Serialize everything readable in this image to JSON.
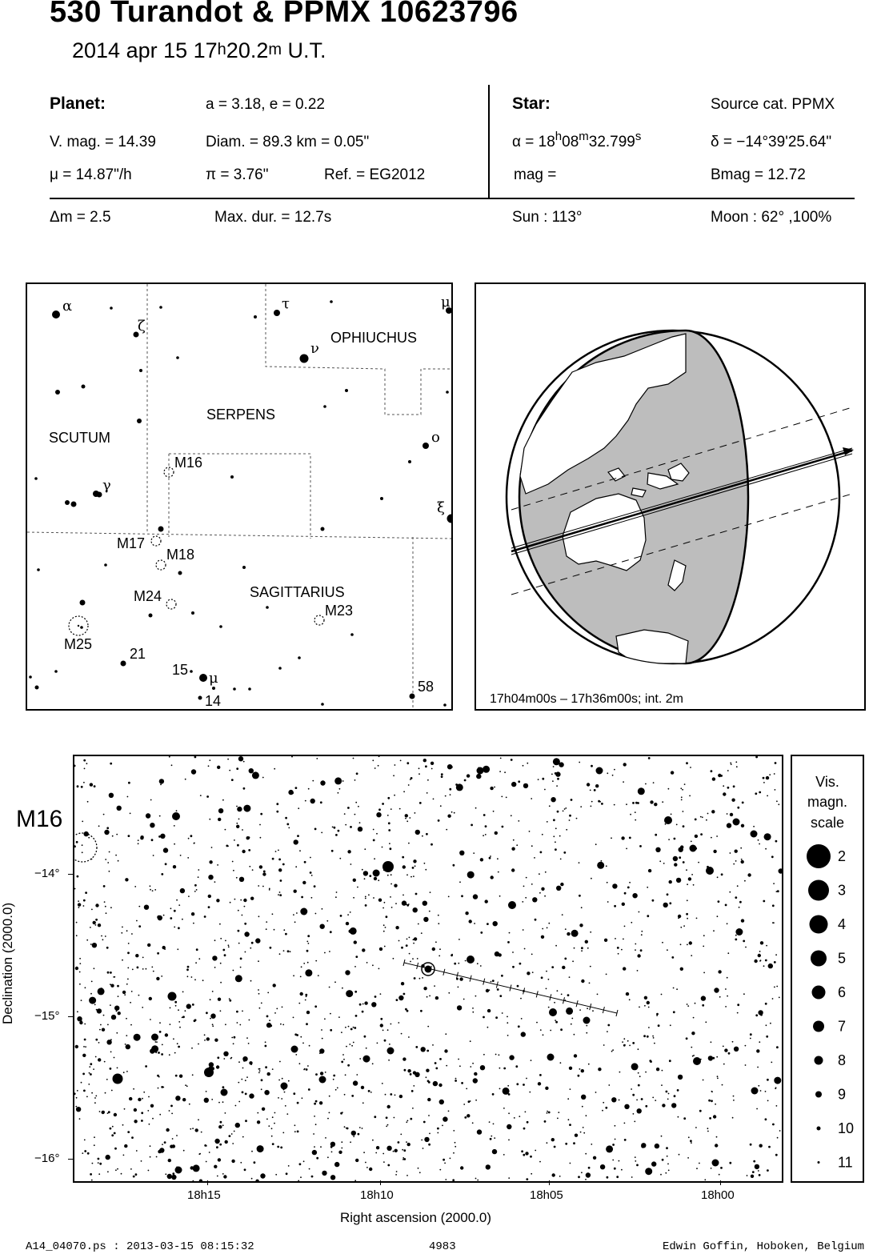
{
  "header": {
    "title": "530 Turandot  &  PPMX 10623796",
    "date": "2014 apr 15  17",
    "time_h": "h",
    "time_min": "20.2",
    "time_m": "m",
    "time_ut": " U.T."
  },
  "planet": {
    "heading": "Planet:",
    "orbit": "a = 3.18, e = 0.22",
    "vmag": "V. mag. = 14.39",
    "diam": "Diam. = 89.3 km = 0.05\"",
    "mu": "μ =  14.87\"/h",
    "pi": "π =  3.76\"",
    "ref": "Ref. = EG2012"
  },
  "star": {
    "heading": "Star:",
    "source": "Source cat.  PPMX",
    "alpha_prefix": "α = 18",
    "alpha_h": "h",
    "alpha_min": "08",
    "alpha_m": "m",
    "alpha_sec": "32.799",
    "alpha_s": "s",
    "delta": "δ = −14°39'25.64\"",
    "mag": " mag =",
    "bmag": "Bmag = 12.72"
  },
  "event": {
    "dm": "Δm = 2.5",
    "maxdur": "Max. dur. = 12.7s",
    "sun": "Sun : 113°",
    "moon": "Moon :  62° ,100%"
  },
  "finder": {
    "constellations": [
      "OPHIUCHUS",
      "SERPENS",
      "SCUTUM",
      "SAGITTARIUS"
    ],
    "objects": [
      "M16",
      "M17",
      "M18",
      "M24",
      "M23",
      "M25"
    ],
    "greek": [
      "α",
      "ζ",
      "τ",
      "ν",
      "μ",
      "ο",
      "ξ",
      "γ",
      "μ"
    ],
    "numbers": [
      "21",
      "15",
      "14",
      "58"
    ]
  },
  "globe": {
    "caption": "17h04m00s – 17h36m00s; int.  2m"
  },
  "starfield": {
    "label_m16": "M16",
    "y_axis_title": "Declination (2000.0)",
    "x_axis_title": "Right ascension (2000.0)",
    "x_ticks": [
      "18h15",
      "18h10",
      "18h05",
      "18h00"
    ],
    "y_ticks": [
      "−14°",
      "−15°",
      "−16°"
    ]
  },
  "legend": {
    "title_lines": [
      "Vis.",
      "magn.",
      "scale"
    ],
    "mags": [
      "2",
      "3",
      "4",
      "5",
      "6",
      "7",
      "8",
      "9",
      "10",
      "11"
    ]
  },
  "footer": {
    "file": "A14_04070.ps : 2013-03-15 08:15:32",
    "number": "4983",
    "author": "Edwin Goffin, Hoboken, Belgium"
  }
}
